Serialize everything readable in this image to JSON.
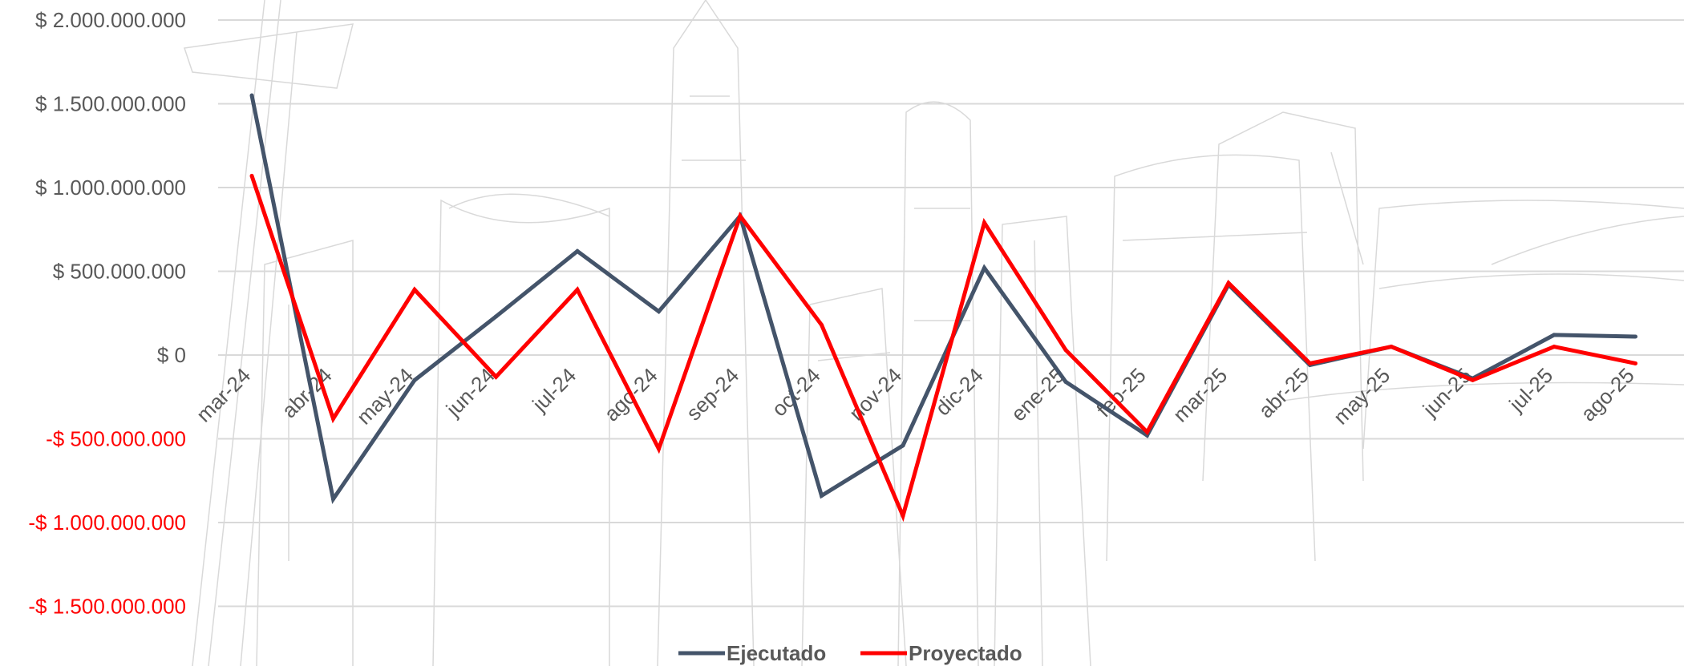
{
  "chart_data": {
    "type": "line",
    "categories": [
      "mar-24",
      "abr-24",
      "may-24",
      "jun-24",
      "jul-24",
      "ago-24",
      "sep-24",
      "oct-24",
      "nov-24",
      "dic-24",
      "ene-25",
      "feb-25",
      "mar-25",
      "abr-25",
      "may-25",
      "jun-25",
      "jul-25",
      "ago-25"
    ],
    "series": [
      {
        "name": "Ejecutado",
        "color": "#44546a",
        "values": [
          1550000000,
          -860000000,
          -150000000,
          230000000,
          620000000,
          260000000,
          830000000,
          -840000000,
          -540000000,
          520000000,
          -160000000,
          -480000000,
          420000000,
          -60000000,
          50000000,
          -140000000,
          120000000,
          110000000
        ]
      },
      {
        "name": "Proyectado",
        "color": "#ff0000",
        "values": [
          1070000000,
          -380000000,
          390000000,
          -130000000,
          390000000,
          -560000000,
          830000000,
          180000000,
          -960000000,
          790000000,
          30000000,
          -460000000,
          430000000,
          -50000000,
          50000000,
          -150000000,
          50000000,
          -50000000
        ]
      }
    ],
    "ylim": [
      -1800000000,
      2000000000
    ],
    "y_ticks": [
      {
        "value": 2000000000,
        "label": "$ 2.000.000.000",
        "color": "#595959"
      },
      {
        "value": 1500000000,
        "label": "$ 1.500.000.000",
        "color": "#595959"
      },
      {
        "value": 1000000000,
        "label": "$ 1.000.000.000",
        "color": "#595959"
      },
      {
        "value": 500000000,
        "label": "$ 500.000.000",
        "color": "#595959"
      },
      {
        "value": 0,
        "label": "$ 0",
        "color": "#595959"
      },
      {
        "value": -500000000,
        "label": "-$ 500.000.000",
        "color": "#ff0000"
      },
      {
        "value": -1000000000,
        "label": "-$ 1.000.000.000",
        "color": "#ff0000"
      },
      {
        "value": -1500000000,
        "label": "-$ 1.500.000.000",
        "color": "#ff0000"
      }
    ],
    "grid": true,
    "legend_position": "bottom",
    "title": "",
    "xlabel": "",
    "ylabel": ""
  }
}
